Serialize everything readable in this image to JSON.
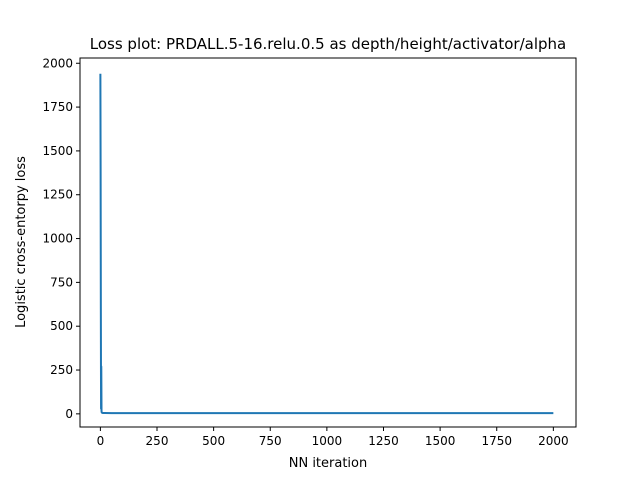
{
  "chart_data": {
    "type": "line",
    "title": "Loss plot: PRDALL.5-16.relu.0.5 as depth/height/activator/alpha",
    "xlabel": "NN iteration",
    "ylabel": "Logistic cross-entorpy loss",
    "xlim": [
      -90,
      2100
    ],
    "ylim": [
      -75,
      2030
    ],
    "xticks": [
      0,
      250,
      500,
      750,
      1000,
      1250,
      1500,
      1750,
      2000
    ],
    "yticks": [
      0,
      250,
      500,
      750,
      1000,
      1250,
      1500,
      1750,
      2000
    ],
    "grid": false,
    "series": [
      {
        "color": "#1f77b4",
        "x": [
          0,
          1,
          2,
          3,
          4,
          5,
          6,
          8,
          10,
          20,
          50,
          100,
          500,
          1000,
          1500,
          2000
        ],
        "y": [
          1940,
          1400,
          600,
          30,
          270,
          15,
          8,
          6,
          5,
          5,
          4,
          4,
          4,
          4,
          4,
          4
        ]
      }
    ]
  }
}
